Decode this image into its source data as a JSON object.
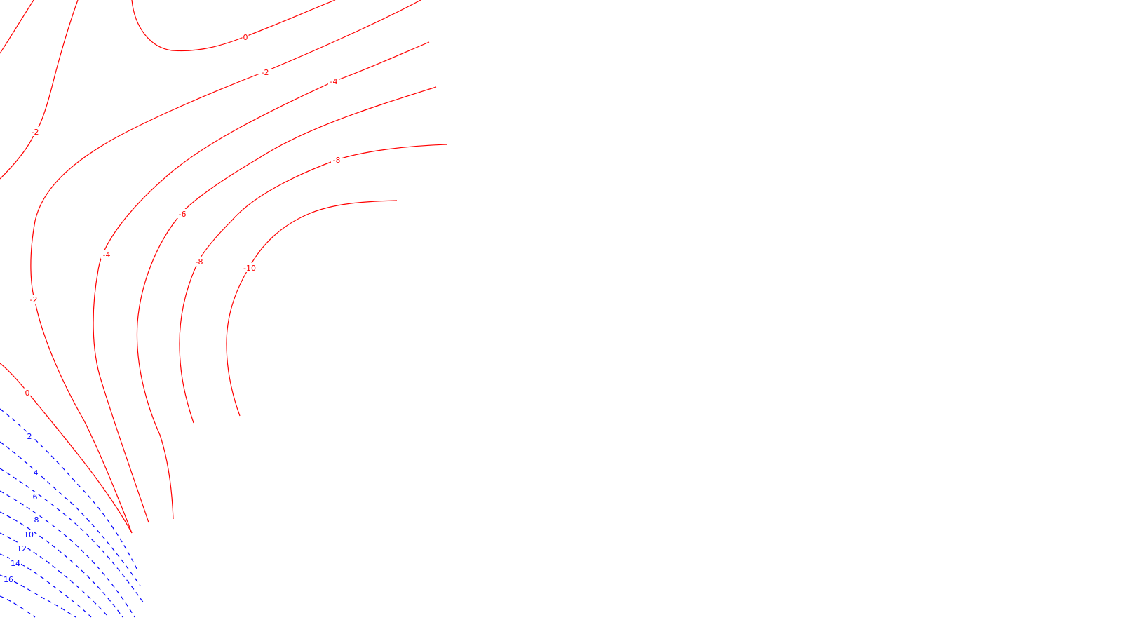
{
  "chart_data": {
    "type": "contour",
    "title": "",
    "xlabel": "",
    "ylabel": "",
    "grid": false,
    "legend": false,
    "colors": {
      "negative": "#ff0000",
      "positive": "#0000ff"
    },
    "line_styles": {
      "negative": "solid",
      "positive": "dashed"
    },
    "contour_levels": [
      -10,
      -8,
      -6,
      -4,
      -2,
      0,
      2,
      4,
      6,
      8,
      10,
      12,
      14,
      16
    ],
    "contour_labels": [
      {
        "text": "0"
      },
      {
        "text": "-2"
      },
      {
        "text": "-4"
      },
      {
        "text": "-2"
      },
      {
        "text": "-6"
      },
      {
        "text": "-8"
      },
      {
        "text": "-4"
      },
      {
        "text": "-8"
      },
      {
        "text": "-10"
      },
      {
        "text": "-2"
      },
      {
        "text": "0"
      },
      {
        "text": "2"
      },
      {
        "text": "4"
      },
      {
        "text": "6"
      },
      {
        "text": "8"
      },
      {
        "text": "10"
      },
      {
        "text": "12"
      },
      {
        "text": "14"
      },
      {
        "text": "16"
      }
    ]
  }
}
